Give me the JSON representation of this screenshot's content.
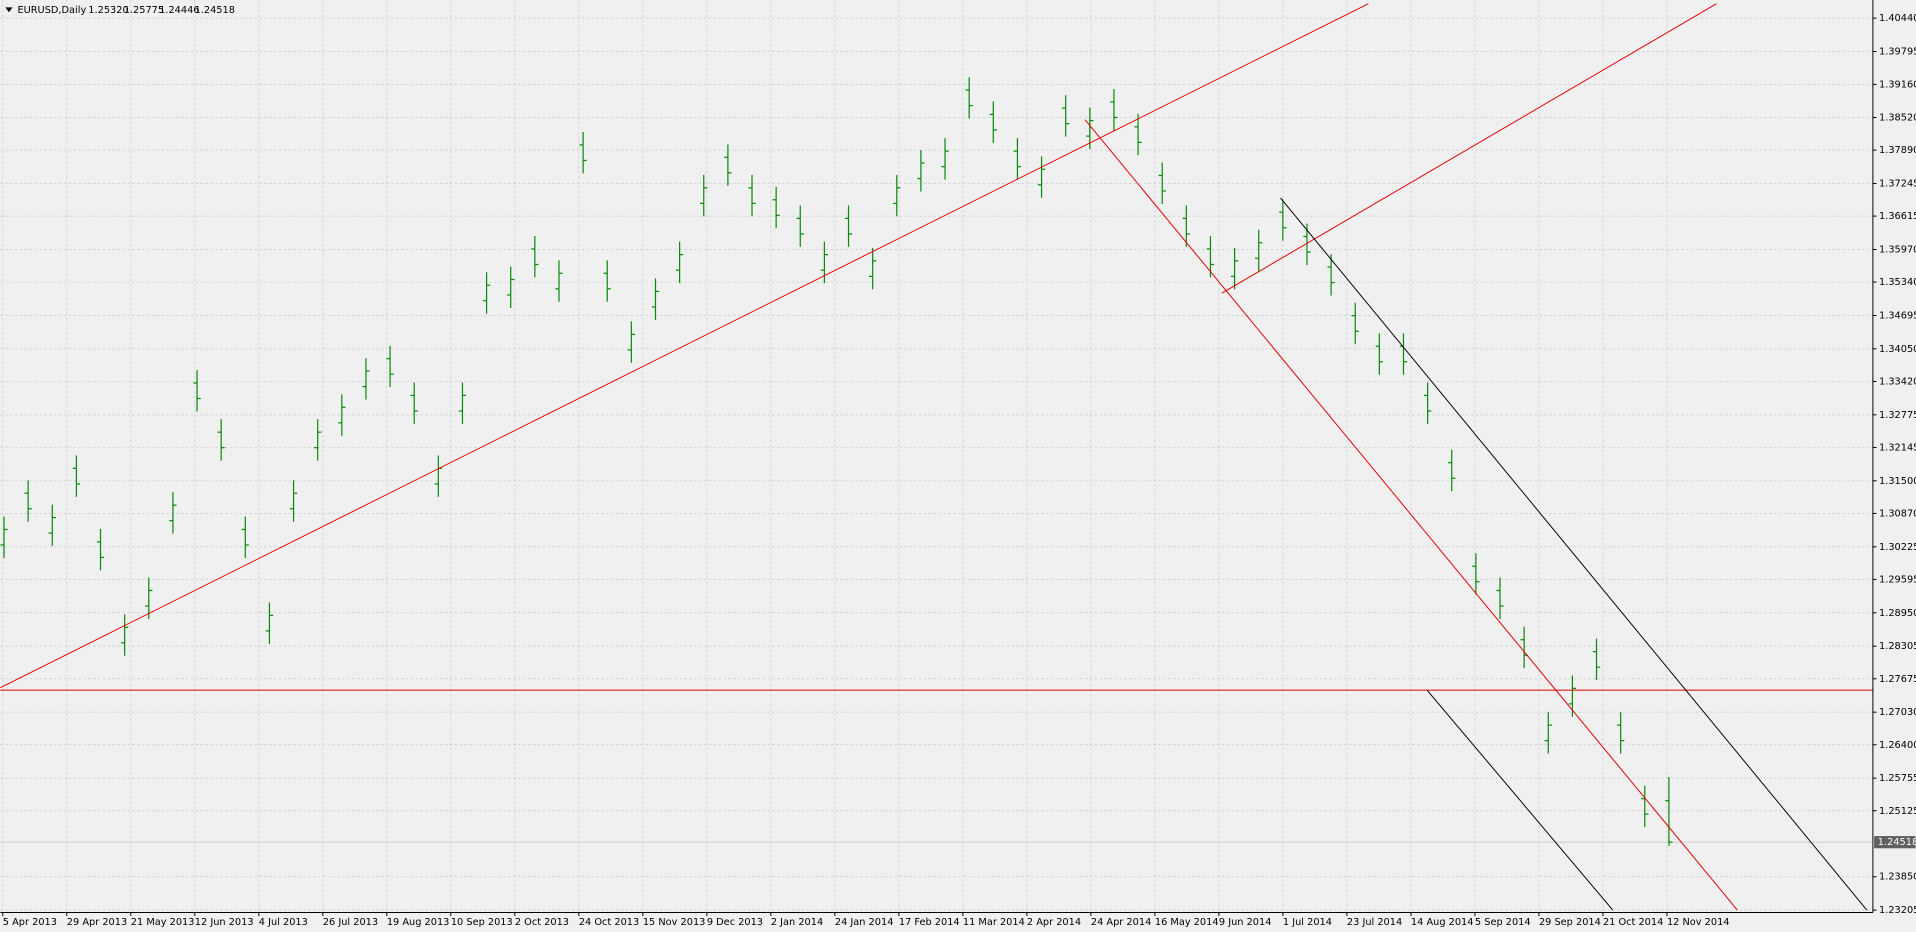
{
  "chart_data": {
    "type": "ohlc",
    "title": "EURUSD,Daily",
    "ohlc_labels": [
      "1.25320",
      "1.25775",
      "1.24446",
      "1.24518"
    ],
    "color": "#0a8a0a",
    "grid": true,
    "ylim": [
      1.2316,
      1.4079
    ],
    "yticks": [
      {
        "value": 1.4044,
        "label": "1.40440"
      },
      {
        "value": 1.39795,
        "label": "1.39795"
      },
      {
        "value": 1.3916,
        "label": "1.39160"
      },
      {
        "value": 1.3852,
        "label": "1.38520"
      },
      {
        "value": 1.3789,
        "label": "1.37890"
      },
      {
        "value": 1.37245,
        "label": "1.37245"
      },
      {
        "value": 1.36615,
        "label": "1.36615"
      },
      {
        "value": 1.3597,
        "label": "1.35970"
      },
      {
        "value": 1.3534,
        "label": "1.35340"
      },
      {
        "value": 1.34695,
        "label": "1.34695"
      },
      {
        "value": 1.3405,
        "label": "1.34050"
      },
      {
        "value": 1.3342,
        "label": "1.33420"
      },
      {
        "value": 1.32775,
        "label": "1.32775"
      },
      {
        "value": 1.32145,
        "label": "1.32145"
      },
      {
        "value": 1.315,
        "label": "1.31500"
      },
      {
        "value": 1.3087,
        "label": "1.30870"
      },
      {
        "value": 1.30225,
        "label": "1.30225"
      },
      {
        "value": 1.29595,
        "label": "1.29595"
      },
      {
        "value": 1.2895,
        "label": "1.28950"
      },
      {
        "value": 1.28305,
        "label": "1.28305"
      },
      {
        "value": 1.27675,
        "label": "1.27675"
      },
      {
        "value": 1.2703,
        "label": "1.27030"
      },
      {
        "value": 1.264,
        "label": "1.26400"
      },
      {
        "value": 1.25755,
        "label": "1.25755"
      },
      {
        "value": 1.25125,
        "label": "1.25125"
      },
      {
        "value": 1.2385,
        "label": "1.23850"
      },
      {
        "value": 1.23205,
        "label": "1.23205"
      }
    ],
    "current_price": {
      "value": 1.24518,
      "label": "1.24518"
    },
    "x_labels": [
      "5 Apr 2013",
      "29 Apr 2013",
      "21 May 2013",
      "12 Jun 2013",
      "4 Jul 2013",
      "26 Jul 2013",
      "19 Aug 2013",
      "10 Sep 2013",
      "2 Oct 2013",
      "24 Oct 2013",
      "15 Nov 2013",
      "9 Dec 2013",
      "2 Jan 2014",
      "24 Jan 2014",
      "17 Feb 2014",
      "11 Mar 2014",
      "2 Apr 2014",
      "24 Apr 2014",
      "16 May 2014",
      "9 Jun 2014",
      "1 Jul 2014",
      "23 Jul 2014",
      "14 Aug 2014",
      "5 Sep 2014",
      "29 Sep 2014",
      "21 Oct 2014",
      "12 Nov 2014"
    ],
    "open": [
      1.3026,
      1.3126,
      1.3049,
      1.3174,
      1.3032,
      1.2837,
      1.2908,
      1.3073,
      1.3339,
      1.3244,
      1.3056,
      1.286,
      1.3096,
      1.3214,
      1.3262,
      1.3332,
      1.3386,
      1.3315,
      1.3144,
      1.3285,
      1.3498,
      1.3509,
      1.3598,
      1.3521,
      1.3799,
      1.3551,
      1.3403,
      1.3486,
      1.3557,
      1.3686,
      1.3775,
      1.3716,
      1.3693,
      1.3657,
      1.3557,
      1.3657,
      1.3545,
      1.3686,
      1.3734,
      1.3757,
      1.3905,
      1.3858,
      1.3787,
      1.3722,
      1.387,
      1.3816,
      1.3882,
      1.3834,
      1.374,
      1.3657,
      1.3598,
      1.3545,
      1.358,
      1.3669,
      1.3622,
      1.3563,
      1.3469,
      1.341,
      1.341,
      1.3315,
      1.3185,
      1.2985,
      1.2938,
      1.2843,
      1.2648,
      1.2719,
      1.282,
      1.2678,
      1.2536,
      1.2532
    ],
    "high": [
      1.3081,
      1.3151,
      1.3104,
      1.3199,
      1.3057,
      1.2892,
      1.2963,
      1.3128,
      1.3364,
      1.3269,
      1.3081,
      1.2915,
      1.3151,
      1.3269,
      1.3317,
      1.3387,
      1.3411,
      1.334,
      1.3199,
      1.334,
      1.3553,
      1.3564,
      1.3623,
      1.3576,
      1.3824,
      1.3576,
      1.3458,
      1.3541,
      1.3612,
      1.3741,
      1.38,
      1.3741,
      1.3718,
      1.3682,
      1.3612,
      1.3682,
      1.36,
      1.3741,
      1.3789,
      1.3812,
      1.393,
      1.3883,
      1.3812,
      1.3777,
      1.3895,
      1.3871,
      1.3907,
      1.3859,
      1.3765,
      1.3682,
      1.3623,
      1.36,
      1.3635,
      1.3694,
      1.3647,
      1.3588,
      1.3494,
      1.3435,
      1.3435,
      1.334,
      1.321,
      1.301,
      1.2963,
      1.2868,
      1.2703,
      1.2774,
      1.2845,
      1.2703,
      1.2561,
      1.25775
    ],
    "low": [
      1.3001,
      1.3071,
      1.3024,
      1.3119,
      1.2977,
      1.2812,
      1.2883,
      1.3048,
      1.3284,
      1.3189,
      1.3001,
      1.2835,
      1.3071,
      1.3189,
      1.3237,
      1.3307,
      1.3331,
      1.326,
      1.3119,
      1.326,
      1.3473,
      1.3484,
      1.3543,
      1.3496,
      1.3744,
      1.3496,
      1.3378,
      1.3461,
      1.3532,
      1.3661,
      1.372,
      1.3661,
      1.3638,
      1.3602,
      1.3532,
      1.3602,
      1.352,
      1.3661,
      1.3709,
      1.3732,
      1.385,
      1.3803,
      1.3732,
      1.3697,
      1.3815,
      1.3791,
      1.3827,
      1.3779,
      1.3685,
      1.3602,
      1.3543,
      1.352,
      1.3555,
      1.3614,
      1.3567,
      1.3508,
      1.3414,
      1.3355,
      1.3355,
      1.326,
      1.313,
      1.293,
      1.2883,
      1.2788,
      1.2623,
      1.2694,
      1.2765,
      1.2623,
      1.2481,
      1.24446
    ],
    "close": [
      1.3056,
      1.3096,
      1.3079,
      1.3144,
      1.3002,
      1.2867,
      1.2938,
      1.3103,
      1.3309,
      1.3214,
      1.3026,
      1.289,
      1.3126,
      1.3244,
      1.3292,
      1.3362,
      1.3356,
      1.3285,
      1.3174,
      1.3315,
      1.3528,
      1.3539,
      1.3568,
      1.3551,
      1.3769,
      1.3521,
      1.3433,
      1.3516,
      1.3587,
      1.3716,
      1.3745,
      1.3686,
      1.3663,
      1.3627,
      1.3587,
      1.3627,
      1.3575,
      1.3716,
      1.3764,
      1.3787,
      1.3875,
      1.3828,
      1.3757,
      1.3752,
      1.384,
      1.3846,
      1.3852,
      1.3804,
      1.371,
      1.3627,
      1.3568,
      1.3575,
      1.361,
      1.3639,
      1.3592,
      1.3533,
      1.3439,
      1.338,
      1.338,
      1.3285,
      1.3155,
      1.2955,
      1.2908,
      1.2813,
      1.2678,
      1.2749,
      1.279,
      1.2648,
      1.2506,
      1.24518
    ]
  }
}
